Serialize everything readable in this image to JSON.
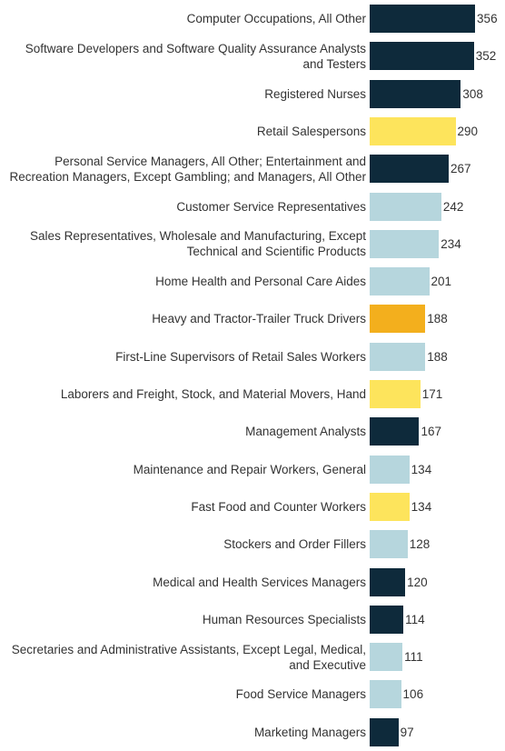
{
  "chart_data": {
    "type": "bar",
    "orientation": "horizontal",
    "categories": [
      "Computer Occupations, All Other",
      "Software Developers and Software Quality Assurance Analysts and Testers",
      "Registered Nurses",
      "Retail Salespersons",
      "Personal Service Managers, All Other; Entertainment and Recreation Managers, Except Gambling; and Managers, All Other",
      "Customer Service Representatives",
      "Sales Representatives, Wholesale and Manufacturing, Except Technical and Scientific Products",
      "Home Health and Personal Care Aides",
      "Heavy and Tractor-Trailer Truck Drivers",
      "First-Line Supervisors of Retail Sales Workers",
      "Laborers and Freight, Stock, and Material Movers, Hand",
      "Management Analysts",
      "Maintenance and Repair Workers, General",
      "Fast Food and Counter Workers",
      "Stockers and Order Fillers",
      "Medical and Health Services Managers",
      "Human Resources Specialists",
      "Secretaries and Administrative Assistants, Except Legal, Medical, and Executive",
      "Food Service Managers",
      "Marketing Managers"
    ],
    "values": [
      356,
      352,
      308,
      290,
      267,
      242,
      234,
      201,
      188,
      188,
      171,
      167,
      134,
      134,
      128,
      120,
      114,
      111,
      106,
      97
    ],
    "colors": [
      "#0e2a3b",
      "#0e2a3b",
      "#0e2a3b",
      "#fde45c",
      "#0e2a3b",
      "#b6d6dd",
      "#b6d6dd",
      "#b6d6dd",
      "#f3af1d",
      "#b6d6dd",
      "#fde45c",
      "#0e2a3b",
      "#b6d6dd",
      "#fde45c",
      "#b6d6dd",
      "#0e2a3b",
      "#0e2a3b",
      "#b6d6dd",
      "#b6d6dd",
      "#0e2a3b"
    ]
  }
}
